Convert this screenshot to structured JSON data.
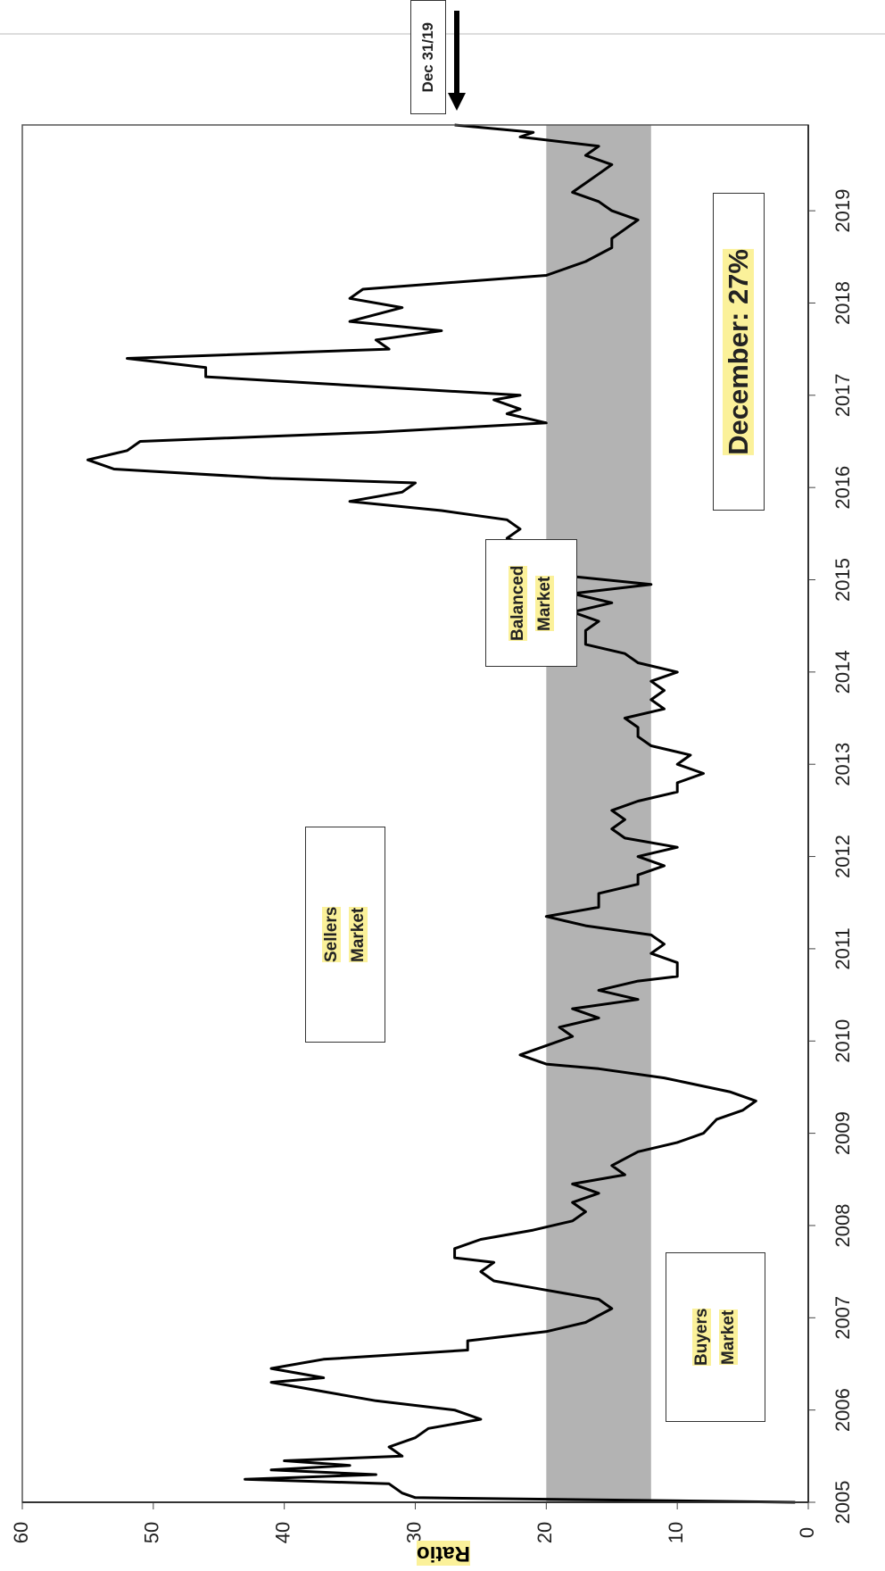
{
  "chart_data": {
    "type": "line",
    "axis_label": "Ratio",
    "color": "#000000",
    "band": [
      12,
      20
    ],
    "band_color": "#b3b3b3",
    "x": [
      2005.0,
      2005.05,
      2005.1,
      2005.2,
      2005.25,
      2005.3,
      2005.35,
      2005.4,
      2005.45,
      2005.5,
      2005.6,
      2005.7,
      2005.8,
      2005.9,
      2006.0,
      2006.1,
      2006.2,
      2006.3,
      2006.35,
      2006.45,
      2006.55,
      2006.65,
      2006.75,
      2006.85,
      2006.95,
      2007.1,
      2007.2,
      2007.3,
      2007.4,
      2007.5,
      2007.6,
      2007.65,
      2007.75,
      2007.85,
      2007.95,
      2008.05,
      2008.15,
      2008.25,
      2008.35,
      2008.45,
      2008.55,
      2008.65,
      2008.8,
      2008.9,
      2009.0,
      2009.15,
      2009.25,
      2009.35,
      2009.45,
      2009.6,
      2009.7,
      2009.75,
      2009.85,
      2009.95,
      2010.05,
      2010.15,
      2010.25,
      2010.35,
      2010.45,
      2010.55,
      2010.65,
      2010.7,
      2010.85,
      2010.95,
      2011.05,
      2011.15,
      2011.25,
      2011.35,
      2011.45,
      2011.6,
      2011.7,
      2011.8,
      2011.9,
      2012.0,
      2012.1,
      2012.2,
      2012.3,
      2012.4,
      2012.5,
      2012.6,
      2012.7,
      2012.8,
      2012.9,
      2013.0,
      2013.1,
      2013.2,
      2013.3,
      2013.4,
      2013.5,
      2013.6,
      2013.7,
      2013.8,
      2013.9,
      2014.0,
      2014.1,
      2014.2,
      2014.3,
      2014.45,
      2014.55,
      2014.65,
      2014.75,
      2014.85,
      2014.95,
      2015.05,
      2015.15,
      2015.25,
      2015.35,
      2015.45,
      2015.55,
      2015.65,
      2015.75,
      2015.85,
      2015.95,
      2016.05,
      2016.1,
      2016.2,
      2016.3,
      2016.4,
      2016.5,
      2016.6,
      2016.7,
      2016.8,
      2016.85,
      2016.95,
      2017.0,
      2017.1,
      2017.2,
      2017.3,
      2017.4,
      2017.5,
      2017.6,
      2017.7,
      2017.8,
      2017.95,
      2018.05,
      2018.15,
      2018.3,
      2018.45,
      2018.6,
      2018.7,
      2018.8,
      2018.9,
      2019.0,
      2019.1,
      2019.2,
      2019.3,
      2019.4,
      2019.5,
      2019.6,
      2019.7,
      2019.8,
      2019.85,
      2019.93
    ],
    "values": [
      1,
      30,
      31,
      32,
      43,
      33,
      41,
      35,
      40,
      31,
      32,
      30,
      29,
      25,
      27,
      33,
      37,
      41,
      37,
      41,
      37,
      26,
      26,
      20,
      17,
      15,
      16,
      20,
      24,
      25,
      24,
      27,
      27,
      25,
      21,
      18,
      17,
      18,
      16,
      18,
      14,
      15,
      13,
      10,
      8,
      7,
      5,
      4,
      6,
      11,
      16,
      20,
      22,
      20,
      18,
      19,
      16,
      18,
      13,
      16,
      13,
      10,
      10,
      12,
      11,
      12,
      17,
      20,
      16,
      16,
      13,
      13,
      11,
      13,
      10,
      14,
      15,
      14,
      15,
      13,
      10,
      10,
      8,
      10,
      9,
      12,
      13,
      13,
      14,
      11,
      12,
      11,
      12,
      10,
      13,
      14,
      17,
      17,
      16,
      18,
      15,
      18,
      12,
      19,
      20,
      22,
      21,
      23,
      22,
      23,
      28,
      35,
      31,
      30,
      41,
      53,
      55,
      52,
      51,
      33,
      20,
      23,
      22,
      24,
      22,
      34,
      46,
      46,
      52,
      32,
      33,
      28,
      35,
      31,
      35,
      34,
      20,
      17,
      15,
      15,
      14,
      13,
      15,
      16,
      18,
      17,
      16,
      15,
      17,
      16,
      22,
      21,
      27
    ],
    "xlim": [
      2005,
      2019.93
    ],
    "xticks": [
      2005,
      2006,
      2007,
      2008,
      2009,
      2010,
      2011,
      2012,
      2013,
      2014,
      2015,
      2016,
      2017,
      2018,
      2019
    ],
    "ylim": [
      0,
      60
    ],
    "yticks": [
      0,
      10,
      20,
      30,
      40,
      50,
      60
    ],
    "annotations": [
      {
        "text": "Dec 31/19"
      },
      {
        "text": "December: 27%"
      },
      {
        "text": "Sellers Market"
      },
      {
        "text": "Balanced Market"
      },
      {
        "text": "Buyers Market"
      }
    ]
  }
}
